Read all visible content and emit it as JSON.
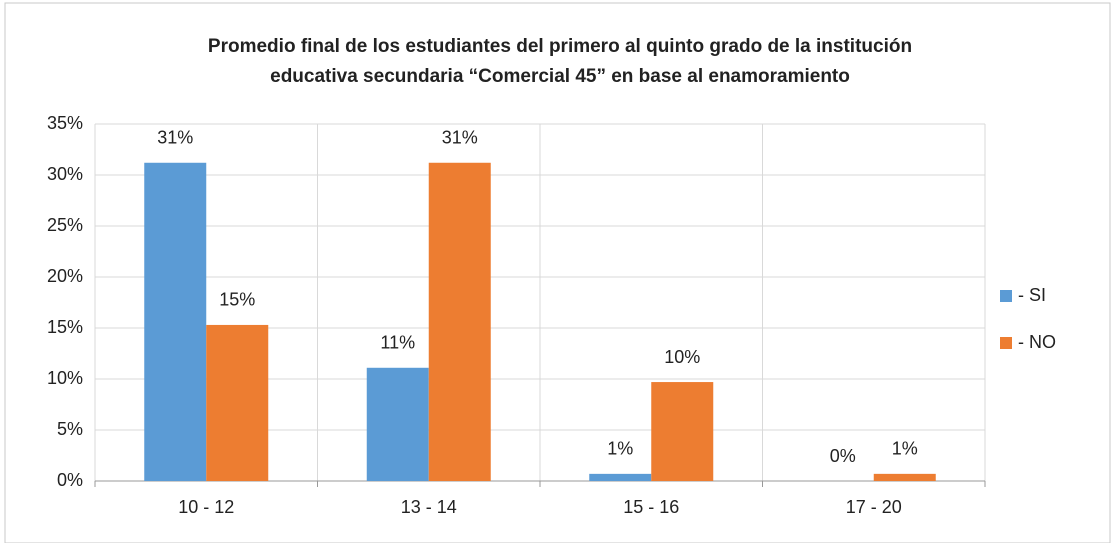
{
  "chart_data": {
    "type": "bar",
    "title": [
      "Promedio final de los estudiantes del primero al quinto grado de la institución",
      "educativa secundaria “Comercial 45” en base al enamoramiento"
    ],
    "categories": [
      "10 - 12",
      "13 - 14",
      "15 - 16",
      "17 - 20"
    ],
    "series": [
      {
        "name": "- SI",
        "color": "#5b9bd5",
        "values": [
          31.2,
          11.1,
          0.7,
          0
        ],
        "value_labels": [
          "31%",
          "11%",
          "1%",
          "0%"
        ]
      },
      {
        "name": "- NO",
        "color": "#ed7d31",
        "values": [
          15.3,
          31.2,
          9.7,
          0.7
        ],
        "value_labels": [
          "15%",
          "31%",
          "10%",
          "1%"
        ]
      }
    ],
    "ylim": [
      0,
      35
    ],
    "yticks": [
      {
        "value": 0,
        "label": "0%"
      },
      {
        "value": 5,
        "label": "5%"
      },
      {
        "value": 10,
        "label": "10%"
      },
      {
        "value": 15,
        "label": "15%"
      },
      {
        "value": 20,
        "label": "20%"
      },
      {
        "value": 25,
        "label": "25%"
      },
      {
        "value": 30,
        "label": "30%"
      },
      {
        "value": 35,
        "label": "35%"
      }
    ],
    "grid": true,
    "legend": "right"
  }
}
